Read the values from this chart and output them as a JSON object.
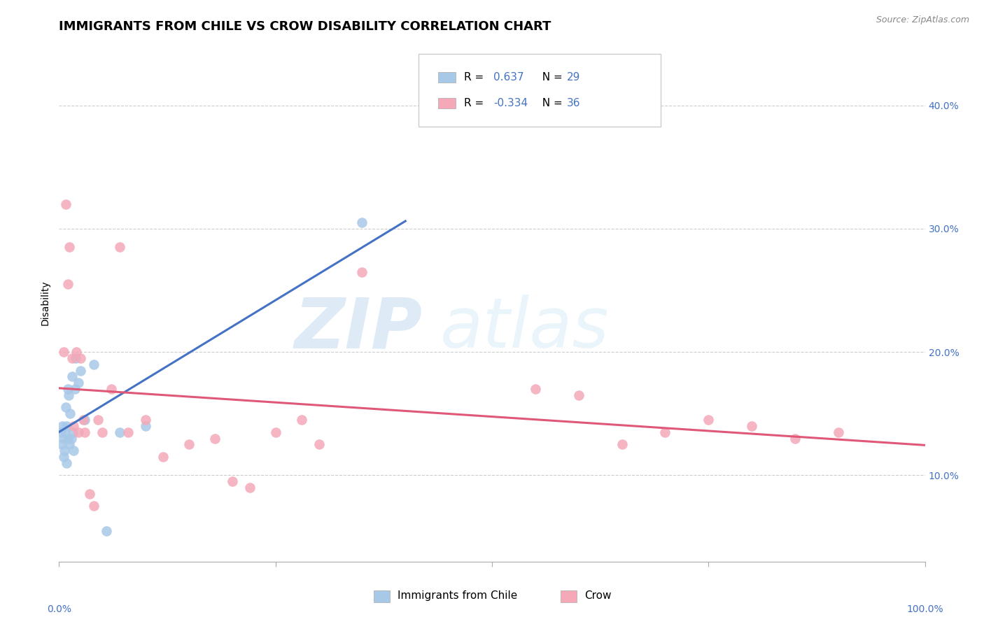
{
  "title": "IMMIGRANTS FROM CHILE VS CROW DISABILITY CORRELATION CHART",
  "source": "Source: ZipAtlas.com",
  "ylabel": "Disability",
  "xlim": [
    0,
    100
  ],
  "ylim": [
    3,
    45
  ],
  "yticks": [
    10,
    20,
    30,
    40
  ],
  "ytick_labels": [
    "10.0%",
    "20.0%",
    "30.0%",
    "40.0%"
  ],
  "grid_color": "#cccccc",
  "background_color": "#ffffff",
  "blue_color": "#a8c8e8",
  "pink_color": "#f4a8b8",
  "blue_line_color": "#4472c4",
  "pink_line_color": "#e05878",
  "r_blue": 0.637,
  "n_blue": 29,
  "r_pink": -0.334,
  "n_pink": 36,
  "blue_x": [
    0.2,
    0.3,
    0.4,
    0.5,
    0.55,
    0.6,
    0.7,
    0.8,
    0.85,
    0.9,
    1.0,
    1.1,
    1.2,
    1.3,
    1.4,
    1.5,
    1.6,
    1.7,
    1.8,
    1.9,
    2.2,
    2.5,
    3.0,
    4.0,
    5.5,
    7.0,
    10.0,
    35.0,
    1.0
  ],
  "blue_y": [
    13.5,
    12.5,
    14.0,
    11.5,
    13.0,
    12.0,
    13.5,
    15.5,
    11.0,
    14.0,
    13.0,
    16.5,
    12.5,
    15.0,
    13.0,
    18.0,
    13.5,
    12.0,
    17.0,
    19.5,
    17.5,
    18.5,
    14.5,
    19.0,
    5.5,
    13.5,
    14.0,
    30.5,
    17.0
  ],
  "pink_x": [
    0.5,
    0.8,
    1.0,
    1.2,
    1.5,
    1.7,
    2.0,
    2.2,
    2.5,
    2.8,
    3.0,
    3.5,
    4.0,
    4.5,
    5.0,
    6.0,
    7.0,
    8.0,
    10.0,
    12.0,
    15.0,
    18.0,
    20.0,
    22.0,
    25.0,
    28.0,
    30.0,
    35.0,
    55.0,
    60.0,
    65.0,
    70.0,
    75.0,
    80.0,
    85.0,
    90.0
  ],
  "pink_y": [
    20.0,
    32.0,
    25.5,
    28.5,
    19.5,
    14.0,
    20.0,
    13.5,
    19.5,
    14.5,
    13.5,
    8.5,
    7.5,
    14.5,
    13.5,
    17.0,
    28.5,
    13.5,
    14.5,
    11.5,
    12.5,
    13.0,
    9.5,
    9.0,
    13.5,
    14.5,
    12.5,
    26.5,
    17.0,
    16.5,
    12.5,
    13.5,
    14.5,
    14.0,
    13.0,
    13.5
  ],
  "legend_label_blue": "Immigrants from Chile",
  "legend_label_pink": "Crow",
  "watermark_zip": "ZIP",
  "watermark_atlas": "atlas",
  "title_fontsize": 13,
  "axis_label_fontsize": 10,
  "tick_fontsize": 10,
  "legend_fontsize": 11
}
